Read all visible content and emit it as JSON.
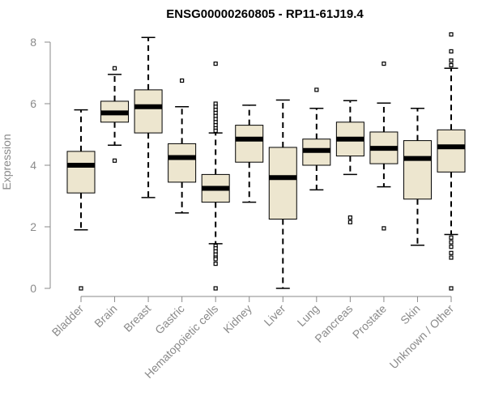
{
  "chart_data": {
    "type": "boxplot",
    "title": "ENSG00000260805 - RP11-61J19.4",
    "xlabel": "",
    "ylabel": "Expression",
    "ylim": [
      0,
      8.2
    ],
    "yticks": [
      0,
      2,
      4,
      6,
      8
    ],
    "colors": {
      "box_fill": "#ede6cf",
      "stroke": "#000000",
      "axis": "#8a8a8a"
    },
    "categories": [
      "Bladder",
      "Brain",
      "Breast",
      "Gastric",
      "Hematopoietic cells",
      "Kidney",
      "Liver",
      "Lung",
      "Pancreas",
      "Prostate",
      "Skin",
      "Unknown / Other"
    ],
    "boxes": [
      {
        "name": "Bladder",
        "lower_whisker": 1.9,
        "q1": 3.1,
        "median": 4.0,
        "q3": 4.45,
        "upper_whisker": 5.8,
        "outliers": [
          0.0
        ]
      },
      {
        "name": "Brain",
        "lower_whisker": 4.65,
        "q1": 5.4,
        "median": 5.7,
        "q3": 6.08,
        "upper_whisker": 6.95,
        "outliers": [
          4.15,
          7.15
        ]
      },
      {
        "name": "Breast",
        "lower_whisker": 2.95,
        "q1": 5.05,
        "median": 5.9,
        "q3": 6.45,
        "upper_whisker": 8.15,
        "outliers": []
      },
      {
        "name": "Gastric",
        "lower_whisker": 2.45,
        "q1": 3.45,
        "median": 4.25,
        "q3": 4.7,
        "upper_whisker": 5.9,
        "outliers": [
          6.75
        ]
      },
      {
        "name": "Hematopoietic cells",
        "lower_whisker": 1.45,
        "q1": 2.8,
        "median": 3.25,
        "q3": 3.7,
        "upper_whisker": 5.05,
        "outliers": [
          7.3,
          6.0,
          5.9,
          5.8,
          5.7,
          5.6,
          5.5,
          5.4,
          5.3,
          5.2,
          5.12,
          1.38,
          1.3,
          1.2,
          1.1,
          1.0,
          0.95,
          0.8,
          0.0
        ]
      },
      {
        "name": "Kidney",
        "lower_whisker": 2.8,
        "q1": 4.1,
        "median": 4.85,
        "q3": 5.3,
        "upper_whisker": 5.95,
        "outliers": []
      },
      {
        "name": "Liver",
        "lower_whisker": 0.0,
        "q1": 2.25,
        "median": 3.6,
        "q3": 4.58,
        "upper_whisker": 6.12,
        "outliers": []
      },
      {
        "name": "Lung",
        "lower_whisker": 3.2,
        "q1": 4.0,
        "median": 4.48,
        "q3": 4.85,
        "upper_whisker": 5.85,
        "outliers": [
          6.45
        ]
      },
      {
        "name": "Pancreas",
        "lower_whisker": 3.7,
        "q1": 4.3,
        "median": 4.85,
        "q3": 5.4,
        "upper_whisker": 6.1,
        "outliers": [
          2.3,
          2.15
        ]
      },
      {
        "name": "Prostate",
        "lower_whisker": 3.3,
        "q1": 4.05,
        "median": 4.55,
        "q3": 5.08,
        "upper_whisker": 6.02,
        "outliers": [
          7.3,
          1.95
        ]
      },
      {
        "name": "Skin",
        "lower_whisker": 1.4,
        "q1": 2.9,
        "median": 4.22,
        "q3": 4.8,
        "upper_whisker": 5.85,
        "outliers": []
      },
      {
        "name": "Unknown / Other",
        "lower_whisker": 1.75,
        "q1": 3.78,
        "median": 4.6,
        "q3": 5.15,
        "upper_whisker": 7.15,
        "outliers": [
          8.25,
          7.7,
          7.4,
          7.25,
          1.65,
          1.5,
          1.35,
          1.15,
          1.0,
          0.0
        ]
      }
    ]
  }
}
